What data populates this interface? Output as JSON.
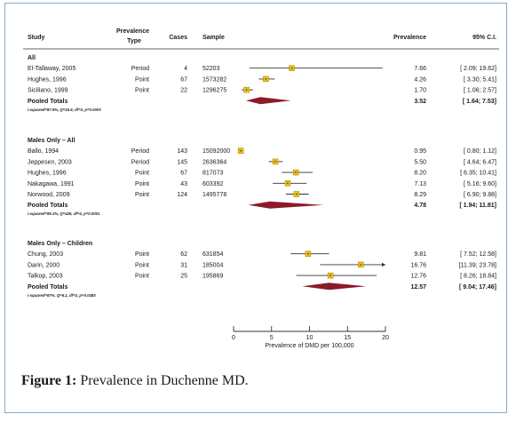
{
  "chart_data": {
    "type": "forest",
    "xlabel": "Prevalence of DMD per 100,000",
    "xlim": [
      0,
      20
    ],
    "xticks": [
      0,
      5,
      10,
      15,
      20
    ],
    "headers": {
      "study": "Study",
      "type_line1": "Prevalence",
      "type_line2": "Type",
      "cases": "Cases",
      "sample": "Sample",
      "prevalence": "Prevalence",
      "ci": "95% C.I."
    },
    "groups": [
      {
        "name": "All",
        "studies": [
          {
            "study": "El-Tallaway, 2005",
            "type": "Period",
            "cases": "4",
            "sample": "52203",
            "prev": 7.66,
            "prev_text": "7.66",
            "lo": 2.09,
            "hi": 19.62,
            "ci_text": "[ 2.09; 19.62]"
          },
          {
            "study": "Hughes, 1996",
            "type": "Point",
            "cases": "67",
            "sample": "1573282",
            "prev": 4.26,
            "prev_text": "4.26",
            "lo": 3.3,
            "hi": 5.41,
            "ci_text": "[ 3.30;  5.41]"
          },
          {
            "study": "Siciliano, 1999",
            "type": "Point",
            "cases": "22",
            "sample": "1296275",
            "prev": 1.7,
            "prev_text": "1.70",
            "lo": 1.06,
            "hi": 2.57,
            "ci_text": "[ 1.06;  2.57]"
          }
        ],
        "pooled": {
          "label": "Pooled Totals",
          "prev": 3.52,
          "prev_text": "3.52",
          "lo": 1.64,
          "hi": 7.53,
          "ci_text": "[ 1.64;  7.53]"
        },
        "stats": "i-squared=87.9%, Q=16.6, df=2, p=0.0003"
      },
      {
        "name": "Males Only – All",
        "studies": [
          {
            "study": "Ballo, 1994",
            "type": "Period",
            "cases": "143",
            "sample": "15092000",
            "prev": 0.95,
            "prev_text": "0.95",
            "lo": 0.8,
            "hi": 1.12,
            "ci_text": "[ 0.80;  1.12]"
          },
          {
            "study": "Jeppesen, 2003",
            "type": "Period",
            "cases": "145",
            "sample": "2636364",
            "prev": 5.5,
            "prev_text": "5.50",
            "lo": 4.64,
            "hi": 6.47,
            "ci_text": "[ 4.64;  6.47]"
          },
          {
            "study": "Hughes, 1996",
            "type": "Point",
            "cases": "67",
            "sample": "817073",
            "prev": 8.2,
            "prev_text": "8.20",
            "lo": 6.35,
            "hi": 10.41,
            "ci_text": "[ 6.35; 10.41]"
          },
          {
            "study": "Nakagawa, 1991",
            "type": "Point",
            "cases": "43",
            "sample": "603392",
            "prev": 7.13,
            "prev_text": "7.13",
            "lo": 5.16,
            "hi": 9.6,
            "ci_text": "[ 5.16;  9.60]"
          },
          {
            "study": "Norwood, 2009",
            "type": "Point",
            "cases": "124",
            "sample": "1495778",
            "prev": 8.29,
            "prev_text": "8.29",
            "lo": 6.9,
            "hi": 9.88,
            "ci_text": "[ 6.90;  9.88]"
          }
        ],
        "pooled": {
          "label": "Pooled Totals",
          "prev": 4.78,
          "prev_text": "4.78",
          "lo": 1.94,
          "hi": 11.81,
          "ci_text": "[ 1.94; 11.81]"
        },
        "stats": "i-squared=99.1%, Q=426, df=4, p=0.0001"
      },
      {
        "name": "Males Only – Children",
        "studies": [
          {
            "study": "Chung, 2003",
            "type": "Point",
            "cases": "62",
            "sample": "631854",
            "prev": 9.81,
            "prev_text": "9.81",
            "lo": 7.52,
            "hi": 12.58,
            "ci_text": "[ 7.52; 12.58]"
          },
          {
            "study": "Darin, 2000",
            "type": "Point",
            "cases": "31",
            "sample": "185004",
            "prev": 16.76,
            "prev_text": "16.76",
            "lo": 11.39,
            "hi": 23.78,
            "ci_text": "[11.39; 23.78]",
            "arrow": true
          },
          {
            "study": "Talkop, 2003",
            "type": "Point",
            "cases": "25",
            "sample": "195869",
            "prev": 12.76,
            "prev_text": "12.76",
            "lo": 8.26,
            "hi": 18.84,
            "ci_text": "[ 8.26; 18.84]"
          }
        ],
        "pooled": {
          "label": "Pooled Totals",
          "prev": 12.57,
          "prev_text": "12.57",
          "lo": 9.04,
          "hi": 17.46,
          "ci_text": "[ 9.04; 17.46]"
        },
        "stats": "i-squared=67%, Q=6.1, df=2, p=0.0483"
      }
    ]
  },
  "caption": {
    "label": "Figure 1:",
    "text": " Prevalence in Duchenne MD."
  },
  "colors": {
    "diamond": "#8b1a2b",
    "point_fill": "#f2c200",
    "point_border": "#7a6a20",
    "line": "#333333",
    "frame": "#8aa8c8"
  }
}
